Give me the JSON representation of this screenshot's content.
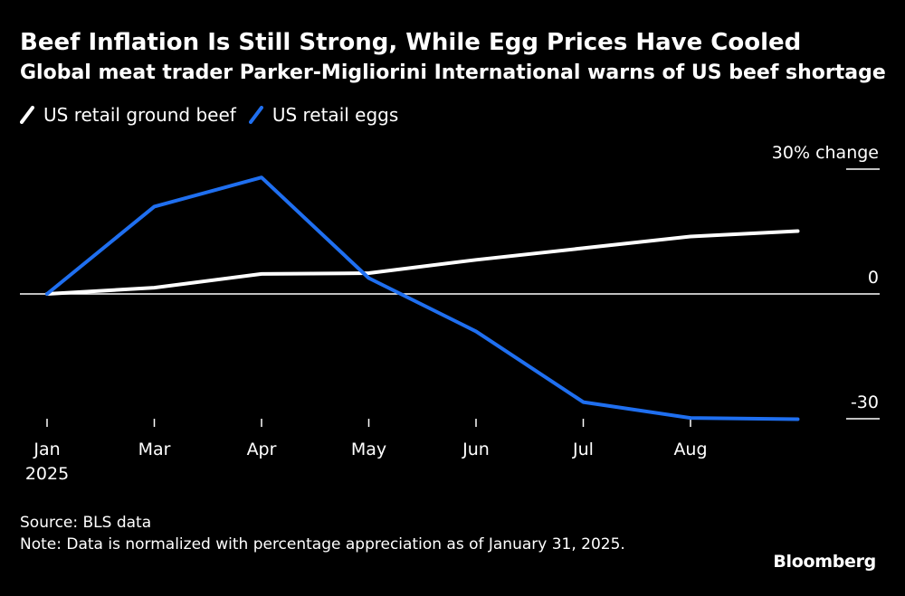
{
  "chart_data": {
    "type": "line",
    "title": "Beef Inflation Is Still Strong, While Egg Prices Have Cooled",
    "subtitle": "Global meat trader Parker-Migliorini International warns of US beef shortage",
    "x_ticks": [
      {
        "label": "Jan",
        "sublabel": "2025",
        "month": 0
      },
      {
        "label": "Mar",
        "sublabel": "",
        "month": 1
      },
      {
        "label": "Apr",
        "sublabel": "",
        "month": 2
      },
      {
        "label": "May",
        "sublabel": "",
        "month": 3
      },
      {
        "label": "Jun",
        "sublabel": "",
        "month": 4
      },
      {
        "label": "Jul",
        "sublabel": "",
        "month": 5
      },
      {
        "label": "Aug",
        "sublabel": "",
        "month": 6
      }
    ],
    "x_range": [
      0,
      7.3
    ],
    "ylim": [
      -30,
      30
    ],
    "y_ticks": [
      {
        "value": 30,
        "label": "30% change"
      },
      {
        "value": 0,
        "label": "0"
      },
      {
        "value": -30,
        "label": "-30"
      }
    ],
    "ylabel": "% change",
    "series": [
      {
        "name": "US retail ground beef",
        "color": "#ffffff",
        "x": [
          0,
          1,
          2,
          3,
          4,
          5,
          6,
          7
        ],
        "values": [
          0,
          1.5,
          4.8,
          5.0,
          8.2,
          11.0,
          13.8,
          15.1
        ]
      },
      {
        "name": "US retail eggs",
        "color": "#1f6ff0",
        "x": [
          0,
          1,
          2,
          3,
          4,
          5,
          6,
          7
        ],
        "values": [
          0,
          21.0,
          28.0,
          3.8,
          -9.0,
          -26.0,
          -29.8,
          -30.1
        ]
      }
    ]
  },
  "footer": {
    "source": "Source: BLS data",
    "note": "Note: Data is normalized with percentage appreciation as of January 31, 2025."
  },
  "brand": "Bloomberg"
}
